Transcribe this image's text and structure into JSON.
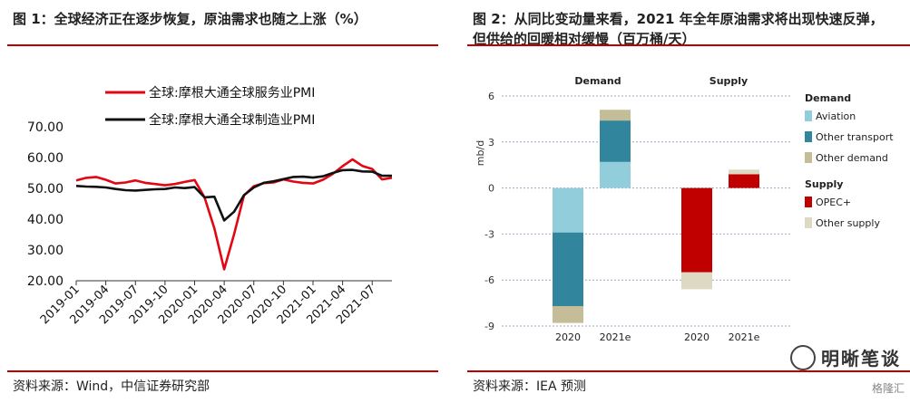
{
  "panel1": {
    "title": "图 1：全球经济正在逐步恢复，原油需求也随之上涨（%）",
    "source": "资料来源：Wind，中信证券研究部"
  },
  "panel2": {
    "title_line1": "图 2：从同比变动量来看，2021 年全年原油需求将出现快速反弹，",
    "title_line2": "但供给的回暖相对缓慢（百万桶/天）",
    "source": "资料来源：IEA 预测"
  },
  "watermark": {
    "brand": "明晰笔谈",
    "corner": "格隆汇"
  },
  "chart_data": [
    {
      "type": "line",
      "title": "",
      "xlabel": "",
      "ylabel": "",
      "ylim": [
        20,
        70
      ],
      "yticks": [
        "20.00",
        "30.00",
        "40.00",
        "50.00",
        "60.00",
        "70.00"
      ],
      "x": [
        "2019-01",
        "2019-02",
        "2019-03",
        "2019-04",
        "2019-05",
        "2019-06",
        "2019-07",
        "2019-08",
        "2019-09",
        "2019-10",
        "2019-11",
        "2019-12",
        "2020-01",
        "2020-02",
        "2020-03",
        "2020-04",
        "2020-05",
        "2020-06",
        "2020-07",
        "2020-08",
        "2020-09",
        "2020-10",
        "2020-11",
        "2020-12",
        "2021-01",
        "2021-02",
        "2021-03",
        "2021-04",
        "2021-05",
        "2021-06",
        "2021-07",
        "2021-08",
        "2021-09"
      ],
      "xtick_labels": [
        "2019-01",
        "2019-04",
        "2019-07",
        "2019-10",
        "2020-01",
        "2020-04",
        "2020-07",
        "2020-10",
        "2021-01",
        "2021-04",
        "2021-07"
      ],
      "series": [
        {
          "name": "全球:摩根大通全球服务业PMI",
          "color": "#e30613",
          "values": [
            52.6,
            53.4,
            53.7,
            52.8,
            51.6,
            51.9,
            52.6,
            51.8,
            51.4,
            51.0,
            51.4,
            52.1,
            52.7,
            47.1,
            37.0,
            23.7,
            35.1,
            47.7,
            50.7,
            51.7,
            51.9,
            52.9,
            52.2,
            51.8,
            51.6,
            52.8,
            54.7,
            57.2,
            59.4,
            57.3,
            56.3,
            52.9,
            53.4
          ]
        },
        {
          "name": "全球:摩根大通全球制造业PMI",
          "color": "#111111",
          "values": [
            50.8,
            50.6,
            50.5,
            50.3,
            49.8,
            49.4,
            49.3,
            49.5,
            49.7,
            49.8,
            50.3,
            50.1,
            50.4,
            47.1,
            47.3,
            39.6,
            42.4,
            47.8,
            50.3,
            51.8,
            52.3,
            53.0,
            53.7,
            53.8,
            53.5,
            53.9,
            55.0,
            55.9,
            56.0,
            55.5,
            55.4,
            54.1,
            54.1
          ]
        }
      ]
    },
    {
      "type": "bar",
      "stacked": true,
      "ylabel": "mb/d",
      "ylim": [
        -9,
        6
      ],
      "yticks": [
        "-9",
        "-6",
        "-3",
        "0",
        "3",
        "6"
      ],
      "groups": [
        "Demand",
        "Supply"
      ],
      "categories": [
        "2020",
        "2021e",
        "2020",
        "2021e"
      ],
      "legend_headers": [
        "Demand",
        "Supply"
      ],
      "series": [
        {
          "name": "Aviation",
          "group": "Demand",
          "color": "#92cddc",
          "values": [
            -2.9,
            1.7,
            0,
            0
          ]
        },
        {
          "name": "Other transport",
          "group": "Demand",
          "color": "#31859c",
          "values": [
            -4.8,
            2.7,
            0,
            0
          ]
        },
        {
          "name": "Other demand",
          "group": "Demand",
          "color": "#c4bd97",
          "values": [
            -1.1,
            0.7,
            0,
            0
          ]
        },
        {
          "name": "OPEC+",
          "group": "Supply",
          "color": "#c00000",
          "values": [
            0,
            0,
            -5.5,
            0.9
          ]
        },
        {
          "name": "Other supply",
          "group": "Supply",
          "color": "#ddd9c3",
          "values": [
            0,
            0,
            -1.1,
            0.3
          ]
        }
      ]
    }
  ]
}
